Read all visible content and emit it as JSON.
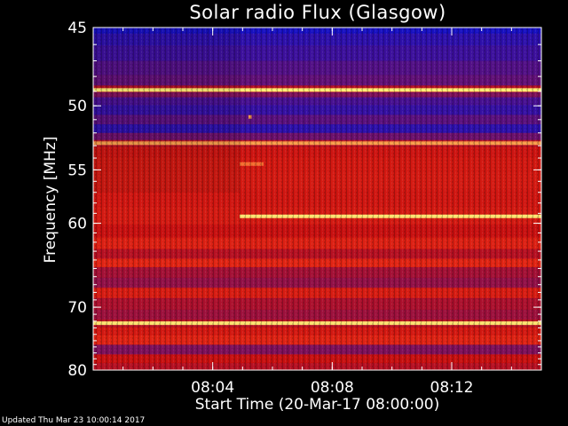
{
  "chart_data": {
    "type": "heatmap",
    "title": "Solar radio Flux (Glasgow)",
    "xlabel": "Start Time (20-Mar-17 08:00:00)",
    "ylabel": "Frequency [MHz]",
    "x_range_minutes": [
      0,
      15
    ],
    "y_range_mhz": [
      45,
      80
    ],
    "y_scale": "reciprocal",
    "x_ticks": [
      {
        "minute": 4,
        "label": "08:04"
      },
      {
        "minute": 8,
        "label": "08:08"
      },
      {
        "minute": 12,
        "label": "08:12"
      }
    ],
    "y_ticks": [
      {
        "mhz": 45,
        "label": "45"
      },
      {
        "mhz": 50,
        "label": "50"
      },
      {
        "mhz": 55,
        "label": "55"
      },
      {
        "mhz": 60,
        "label": "60"
      },
      {
        "mhz": 70,
        "label": "70"
      },
      {
        "mhz": 80,
        "label": "80"
      }
    ],
    "colors": {
      "background": "#000000",
      "low": "#1010c8",
      "mid": "#c81010",
      "high": "#ffff80"
    },
    "bands": [
      {
        "mhz": 45.1,
        "value": 0.02
      },
      {
        "mhz": 45.6,
        "value": 0.08
      },
      {
        "mhz": 46.5,
        "value": 0.12
      },
      {
        "mhz": 47.5,
        "value": 0.18
      },
      {
        "mhz": 48.3,
        "value": 0.22
      },
      {
        "mhz": 48.9,
        "value": 0.98
      },
      {
        "mhz": 49.2,
        "value": 0.3
      },
      {
        "mhz": 49.6,
        "value": 0.15
      },
      {
        "mhz": 50.3,
        "value": 0.1
      },
      {
        "mhz": 51.0,
        "value": 0.2
      },
      {
        "mhz": 51.7,
        "value": 0.08
      },
      {
        "mhz": 52.3,
        "value": 0.25
      },
      {
        "mhz": 52.8,
        "value": 0.9
      },
      {
        "mhz": 53.4,
        "value": 0.55
      },
      {
        "mhz": 54.5,
        "value": 0.6
      },
      {
        "mhz": 56.0,
        "value": 0.62
      },
      {
        "mhz": 57.5,
        "value": 0.58
      },
      {
        "mhz": 59.3,
        "value": 0.62
      },
      {
        "mhz": 61.0,
        "value": 0.5
      },
      {
        "mhz": 62.0,
        "value": 0.7
      },
      {
        "mhz": 63.5,
        "value": 0.45
      },
      {
        "mhz": 64.2,
        "value": 0.75
      },
      {
        "mhz": 65.5,
        "value": 0.4
      },
      {
        "mhz": 66.8,
        "value": 0.35
      },
      {
        "mhz": 68.0,
        "value": 0.65
      },
      {
        "mhz": 69.5,
        "value": 0.42
      },
      {
        "mhz": 71.2,
        "value": 0.38
      },
      {
        "mhz": 72.3,
        "value": 0.97
      },
      {
        "mhz": 73.5,
        "value": 0.6
      },
      {
        "mhz": 74.8,
        "value": 0.72
      },
      {
        "mhz": 76.5,
        "value": 0.3
      },
      {
        "mhz": 78.0,
        "value": 0.5
      },
      {
        "mhz": 79.5,
        "value": 0.45
      }
    ],
    "events": [
      {
        "mhz": 59.3,
        "start_minute": 4.9,
        "end_minute": 15,
        "value": 0.97
      },
      {
        "mhz": 54.5,
        "start_minute": 4.9,
        "end_minute": 5.7,
        "value": 0.85
      },
      {
        "mhz": 50.8,
        "start_minute": 5.2,
        "end_minute": 5.3,
        "value": 0.9
      }
    ],
    "regime_change_minute": 4.9
  },
  "footer": {
    "updated": "Updated Thu Mar 23 10:00:14 2017"
  }
}
